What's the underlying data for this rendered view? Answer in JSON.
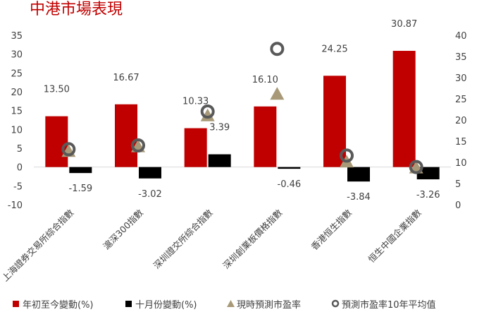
{
  "chart_data": {
    "type": "bar",
    "title": "中港市場表現",
    "categories": [
      "上海證券交易所綜合指數",
      "滬深300指數",
      "深圳證交所綜合指數",
      "深圳創業板價格指數",
      "香港恒生指數",
      "恒生中國企業指數"
    ],
    "series": [
      {
        "name": "年初至今變動(%)",
        "kind": "bar",
        "axis": "left",
        "color": "#c00000",
        "values": [
          13.5,
          16.67,
          10.33,
          16.1,
          24.25,
          30.87
        ],
        "labels": [
          "13.50",
          "16.67",
          "10.33",
          "16.10",
          "24.25",
          "30.87"
        ]
      },
      {
        "name": "十月份變動(%)",
        "kind": "bar",
        "axis": "left",
        "color": "#000000",
        "values": [
          -1.59,
          -3.02,
          3.39,
          -0.46,
          -3.84,
          -3.26
        ],
        "labels": [
          "-1.59",
          "-3.02",
          "3.39",
          "-0.46",
          "-3.84",
          "-3.26"
        ]
      },
      {
        "name": "現時預測市盈率",
        "kind": "marker",
        "marker": "triangle",
        "axis": "right",
        "color": "#a89a78",
        "values": [
          12.8,
          13.9,
          21.2,
          26.3,
          10.3,
          8.9
        ]
      },
      {
        "name": "預測市盈率10年平均值",
        "kind": "marker",
        "marker": "ring",
        "axis": "right",
        "color": "#595959",
        "values": [
          13.1,
          14.0,
          22.0,
          36.8,
          11.6,
          8.9
        ]
      }
    ],
    "y_left": {
      "min": -10,
      "max": 35,
      "step": 5
    },
    "y_right": {
      "min": 0,
      "max": 40,
      "step": 5
    },
    "grid": false,
    "legend_position": "bottom"
  }
}
